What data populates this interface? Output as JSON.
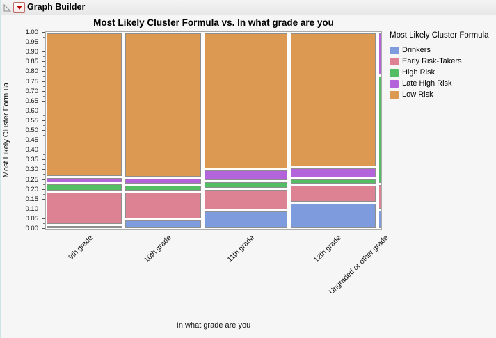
{
  "window": {
    "title": "Graph Builder"
  },
  "chart": {
    "title": "Most Likely Cluster Formula vs. In what grade are you",
    "y_axis_label": "Most Likely Cluster Formula",
    "x_axis_label": "In what grade are you",
    "legend_title": "Most Likely Cluster Formula"
  },
  "chart_data": {
    "type": "mosaic",
    "x_variable": "In what grade are you",
    "y_variable": "Most Likely Cluster Formula",
    "categories": [
      "9th grade",
      "10th grade",
      "11th grade",
      "12th grade",
      "Ungraded or other grade"
    ],
    "category_widths": [
      0.225,
      0.227,
      0.248,
      0.252,
      0.005
    ],
    "series": [
      {
        "name": "Drinkers",
        "color": "#7d9bdd",
        "values": [
          0.02,
          0.05,
          0.095,
          0.135,
          0.1
        ]
      },
      {
        "name": "Early Risk-Takers",
        "color": "#dc8293",
        "values": [
          0.17,
          0.14,
          0.11,
          0.09,
          0.13
        ]
      },
      {
        "name": "High Risk",
        "color": "#52bd62",
        "values": [
          0.045,
          0.035,
          0.04,
          0.032,
          0.55
        ]
      },
      {
        "name": "Late High Risk",
        "color": "#b364db",
        "values": [
          0.03,
          0.035,
          0.06,
          0.058,
          0.22
        ]
      },
      {
        "name": "Low Risk",
        "color": "#db9952",
        "values": [
          0.735,
          0.74,
          0.695,
          0.685,
          0.0
        ]
      }
    ],
    "y_ticks": [
      "1.00",
      "0.95",
      "0.90",
      "0.85",
      "0.80",
      "0.75",
      "0.70",
      "0.65",
      "0.60",
      "0.55",
      "0.50",
      "0.45",
      "0.40",
      "0.35",
      "0.30",
      "0.25",
      "0.20",
      "0.15",
      "0.10",
      "0.05",
      "0.00"
    ],
    "ylim": [
      0,
      1
    ],
    "grid": false,
    "legend_position": "right"
  }
}
